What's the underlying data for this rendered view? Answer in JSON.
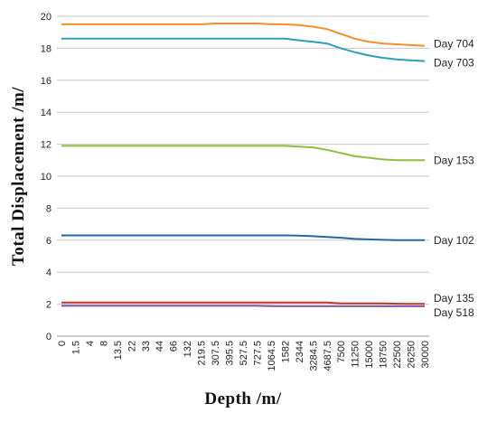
{
  "chart_data": {
    "type": "line",
    "title": "",
    "xlabel": "Depth /m/",
    "ylabel": "Total Displacement /m/",
    "ylim": [
      0,
      20
    ],
    "yticks": [
      0,
      2,
      4,
      6,
      8,
      10,
      12,
      14,
      16,
      18,
      20
    ],
    "grid": true,
    "legend": "inline-right",
    "categories": [
      "0",
      "1.5",
      "4",
      "8",
      "13.5",
      "22",
      "33",
      "44",
      "66",
      "132",
      "219.5",
      "307.5",
      "395.5",
      "527.5",
      "727.5",
      "1064.5",
      "1582",
      "2344",
      "3284.5",
      "4687.5",
      "7500",
      "11250",
      "15000",
      "18750",
      "22500",
      "26250",
      "30000"
    ],
    "series": [
      {
        "name": "Day 704",
        "color": "#f28e2b",
        "values": [
          19.5,
          19.5,
          19.5,
          19.5,
          19.5,
          19.5,
          19.5,
          19.5,
          19.5,
          19.5,
          19.5,
          19.55,
          19.55,
          19.55,
          19.55,
          19.5,
          19.5,
          19.45,
          19.35,
          19.2,
          18.9,
          18.6,
          18.4,
          18.3,
          18.25,
          18.2,
          18.15
        ]
      },
      {
        "name": "Day 703",
        "color": "#2e9fb5",
        "values": [
          18.6,
          18.6,
          18.6,
          18.6,
          18.6,
          18.6,
          18.6,
          18.6,
          18.6,
          18.6,
          18.6,
          18.6,
          18.6,
          18.6,
          18.6,
          18.6,
          18.6,
          18.5,
          18.4,
          18.3,
          18.0,
          17.75,
          17.55,
          17.4,
          17.3,
          17.25,
          17.2
        ]
      },
      {
        "name": "Day 153",
        "color": "#8cbf44",
        "values": [
          11.9,
          11.9,
          11.9,
          11.9,
          11.9,
          11.9,
          11.9,
          11.9,
          11.9,
          11.9,
          11.9,
          11.9,
          11.9,
          11.9,
          11.9,
          11.9,
          11.9,
          11.85,
          11.8,
          11.65,
          11.45,
          11.25,
          11.15,
          11.05,
          11.0,
          11.0,
          11.0
        ]
      },
      {
        "name": "Day 102",
        "color": "#1f6aa5",
        "values": [
          6.3,
          6.3,
          6.3,
          6.3,
          6.3,
          6.3,
          6.3,
          6.3,
          6.3,
          6.3,
          6.3,
          6.3,
          6.3,
          6.3,
          6.3,
          6.3,
          6.3,
          6.28,
          6.25,
          6.2,
          6.15,
          6.08,
          6.05,
          6.02,
          6.0,
          6.0,
          6.0
        ]
      },
      {
        "name": "Day 135",
        "color": "#c0392b",
        "values": [
          2.1,
          2.1,
          2.1,
          2.1,
          2.1,
          2.1,
          2.1,
          2.1,
          2.1,
          2.1,
          2.1,
          2.1,
          2.1,
          2.1,
          2.1,
          2.1,
          2.1,
          2.1,
          2.1,
          2.1,
          2.05,
          2.05,
          2.05,
          2.05,
          2.03,
          2.02,
          2.02
        ]
      },
      {
        "name": "Day 518",
        "color": "#7e57a5",
        "values": [
          1.9,
          1.9,
          1.9,
          1.9,
          1.9,
          1.9,
          1.9,
          1.9,
          1.9,
          1.9,
          1.9,
          1.9,
          1.9,
          1.9,
          1.9,
          1.88,
          1.87,
          1.87,
          1.87,
          1.87,
          1.87,
          1.87,
          1.87,
          1.87,
          1.87,
          1.87,
          1.87
        ]
      }
    ]
  }
}
